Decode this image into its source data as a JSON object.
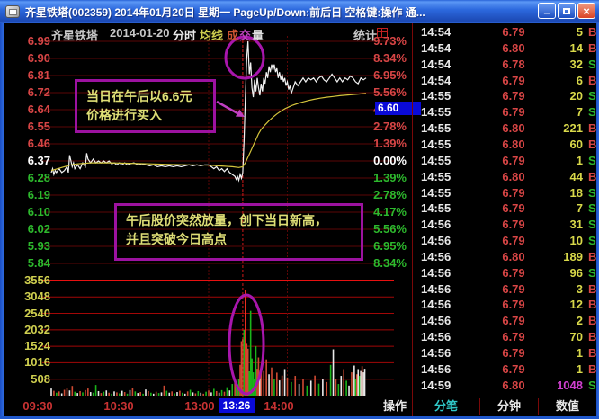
{
  "window": {
    "title": "齐星铁塔(002359)  2014年01月20日  星期一  PageUp/Down:前后日  空格键:操作  通...",
    "minimize": "_",
    "close": "×"
  },
  "header": {
    "stock_name": "齐星铁塔",
    "date": "2014-01-20",
    "period": "分时",
    "legend_ma": "均线",
    "legend_vol_1": "成",
    "legend_vol_2": "交",
    "legend_vol_3": "量",
    "stats": "统计"
  },
  "axes": {
    "price": [
      "6.99",
      "6.90",
      "6.81",
      "6.72",
      "6.64",
      "6.55",
      "6.46",
      "6.37",
      "6.28",
      "6.19",
      "6.10",
      "6.02",
      "5.93",
      "5.84"
    ],
    "percent": [
      "9.73%",
      "8.34%",
      "6.95%",
      "5.56%",
      "4.17%",
      "2.78%",
      "1.39%",
      "0.00%",
      "1.39%",
      "2.78%",
      "4.17%",
      "5.56%",
      "6.95%",
      "8.34%"
    ],
    "volume": [
      "3556",
      "3048",
      "2540",
      "2032",
      "1524",
      "1016",
      "508"
    ],
    "time": [
      "09:30",
      "10:30",
      "13:00",
      "14:00"
    ]
  },
  "cursor": {
    "time": "13:26",
    "price": "6.60"
  },
  "annotations": {
    "box1": [
      "当日在午后以6.6元",
      "价格进行买入"
    ],
    "box2": [
      "午后股价突然放量，创下当日新高，",
      "并且突破今日高点"
    ]
  },
  "tabs": {
    "items": [
      {
        "label": "操作",
        "active": false
      },
      {
        "label": "分笔",
        "active": true
      },
      {
        "label": "分钟",
        "active": false
      },
      {
        "label": "数值",
        "active": false
      }
    ]
  },
  "tick_list": [
    {
      "time": "14:54",
      "price": "6.79",
      "vol": "5",
      "side": "B",
      "hl": false
    },
    {
      "time": "14:54",
      "price": "6.80",
      "vol": "14",
      "side": "B",
      "hl": false
    },
    {
      "time": "14:54",
      "price": "6.78",
      "vol": "32",
      "side": "S",
      "hl": false
    },
    {
      "time": "14:54",
      "price": "6.79",
      "vol": "6",
      "side": "B",
      "hl": false
    },
    {
      "time": "14:55",
      "price": "6.79",
      "vol": "20",
      "side": "S",
      "hl": false
    },
    {
      "time": "14:55",
      "price": "6.79",
      "vol": "7",
      "side": "S",
      "hl": false
    },
    {
      "time": "14:55",
      "price": "6.80",
      "vol": "221",
      "side": "B",
      "hl": false
    },
    {
      "time": "14:55",
      "price": "6.80",
      "vol": "60",
      "side": "B",
      "hl": false
    },
    {
      "time": "14:55",
      "price": "6.79",
      "vol": "1",
      "side": "S",
      "hl": false
    },
    {
      "time": "14:55",
      "price": "6.80",
      "vol": "44",
      "side": "B",
      "hl": false
    },
    {
      "time": "14:55",
      "price": "6.79",
      "vol": "18",
      "side": "S",
      "hl": false
    },
    {
      "time": "14:55",
      "price": "6.79",
      "vol": "7",
      "side": "S",
      "hl": false
    },
    {
      "time": "14:56",
      "price": "6.79",
      "vol": "31",
      "side": "S",
      "hl": false
    },
    {
      "time": "14:56",
      "price": "6.79",
      "vol": "10",
      "side": "S",
      "hl": false
    },
    {
      "time": "14:56",
      "price": "6.80",
      "vol": "189",
      "side": "B",
      "hl": false
    },
    {
      "time": "14:56",
      "price": "6.79",
      "vol": "96",
      "side": "S",
      "hl": false
    },
    {
      "time": "14:56",
      "price": "6.79",
      "vol": "3",
      "side": "B",
      "hl": false
    },
    {
      "time": "14:56",
      "price": "6.79",
      "vol": "12",
      "side": "B",
      "hl": false
    },
    {
      "time": "14:56",
      "price": "6.79",
      "vol": "2",
      "side": "B",
      "hl": false
    },
    {
      "time": "14:56",
      "price": "6.79",
      "vol": "70",
      "side": "B",
      "hl": false
    },
    {
      "time": "14:56",
      "price": "6.79",
      "vol": "1",
      "side": "B",
      "hl": false
    },
    {
      "time": "14:56",
      "price": "6.79",
      "vol": "1",
      "side": "B",
      "hl": false
    },
    {
      "time": "14:59",
      "price": "6.80",
      "vol": "1048",
      "side": "S",
      "hl": true
    }
  ],
  "colors": {
    "up": "#d64545",
    "down": "#2db82d",
    "flat": "#ffffff",
    "vol_text": "#d8d84a",
    "highlight_vol": "#d040d0",
    "annotation_purple": "#9c12a0",
    "badge_blue": "#0a0ad8",
    "tab_active": "#30c8c8",
    "price_line": "#f2f2f2",
    "avg_line": "#d4c43c"
  },
  "chart_data": {
    "type": "line",
    "subtype": "intraday-price-volume",
    "prev_close": 6.37,
    "high": 6.99,
    "low": 6.27,
    "close": 6.8,
    "price_axis_range": [
      5.84,
      6.99
    ],
    "percent_axis_range": [
      -8.34,
      9.73
    ],
    "volume_axis_max": 3556,
    "x_range_minutes": [
      0,
      240
    ],
    "x_ticks": [
      "09:30",
      "10:30",
      "13:00",
      "14:00"
    ],
    "cursor": {
      "minute": 146,
      "time": "13:26",
      "price": 6.6
    },
    "price_series": [
      [
        0,
        6.31
      ],
      [
        1,
        6.33
      ],
      [
        2,
        6.3
      ],
      [
        3,
        6.32
      ],
      [
        4,
        6.31
      ],
      [
        6,
        6.33
      ],
      [
        8,
        6.31
      ],
      [
        10,
        6.32
      ],
      [
        12,
        6.34
      ],
      [
        13,
        6.31
      ],
      [
        14,
        6.4
      ],
      [
        15,
        6.37
      ],
      [
        16,
        6.34
      ],
      [
        17,
        6.36
      ],
      [
        18,
        6.33
      ],
      [
        20,
        6.35
      ],
      [
        22,
        6.33
      ],
      [
        24,
        6.36
      ],
      [
        26,
        6.34
      ],
      [
        27,
        6.41
      ],
      [
        28,
        6.38
      ],
      [
        30,
        6.36
      ],
      [
        32,
        6.38
      ],
      [
        34,
        6.36
      ],
      [
        36,
        6.37
      ],
      [
        38,
        6.36
      ],
      [
        40,
        6.37
      ],
      [
        42,
        6.36
      ],
      [
        44,
        6.37
      ],
      [
        46,
        6.355
      ],
      [
        48,
        6.36
      ],
      [
        50,
        6.35
      ],
      [
        52,
        6.36
      ],
      [
        54,
        6.35
      ],
      [
        56,
        6.36
      ],
      [
        58,
        6.35
      ],
      [
        60,
        6.355
      ],
      [
        63,
        6.36
      ],
      [
        66,
        6.35
      ],
      [
        69,
        6.355
      ],
      [
        72,
        6.35
      ],
      [
        75,
        6.345
      ],
      [
        78,
        6.35
      ],
      [
        81,
        6.34
      ],
      [
        84,
        6.345
      ],
      [
        87,
        6.34
      ],
      [
        90,
        6.345
      ],
      [
        93,
        6.34
      ],
      [
        96,
        6.345
      ],
      [
        99,
        6.34
      ],
      [
        102,
        6.345
      ],
      [
        105,
        6.35
      ],
      [
        108,
        6.345
      ],
      [
        111,
        6.35
      ],
      [
        114,
        6.345
      ],
      [
        117,
        6.35
      ],
      [
        120,
        6.35
      ],
      [
        122,
        6.34
      ],
      [
        124,
        6.33
      ],
      [
        126,
        6.34
      ],
      [
        128,
        6.32
      ],
      [
        130,
        6.33
      ],
      [
        132,
        6.315
      ],
      [
        134,
        6.33
      ],
      [
        136,
        6.31
      ],
      [
        138,
        6.3
      ],
      [
        140,
        6.29
      ],
      [
        141,
        6.275
      ],
      [
        142,
        6.29
      ],
      [
        143,
        6.27
      ],
      [
        144,
        6.3
      ],
      [
        145,
        6.28
      ],
      [
        146,
        6.31
      ],
      [
        147,
        6.48
      ],
      [
        148,
        6.7
      ],
      [
        149,
        6.9
      ],
      [
        150,
        6.99
      ],
      [
        151,
        6.82
      ],
      [
        152,
        6.88
      ],
      [
        153,
        6.75
      ],
      [
        154,
        6.7
      ],
      [
        155,
        6.79
      ],
      [
        156,
        6.73
      ],
      [
        157,
        6.8
      ],
      [
        158,
        6.75
      ],
      [
        159,
        6.71
      ],
      [
        160,
        6.77
      ],
      [
        161,
        6.73
      ],
      [
        162,
        6.8
      ],
      [
        163,
        6.77
      ],
      [
        164,
        6.83
      ],
      [
        165,
        6.8
      ],
      [
        166,
        6.86
      ],
      [
        167,
        6.83
      ],
      [
        168,
        6.87
      ],
      [
        169,
        6.84
      ],
      [
        170,
        6.87
      ],
      [
        171,
        6.83
      ],
      [
        172,
        6.85
      ],
      [
        173,
        6.8
      ],
      [
        174,
        6.83
      ],
      [
        175,
        6.79
      ],
      [
        176,
        6.82
      ],
      [
        177,
        6.78
      ],
      [
        178,
        6.8
      ],
      [
        179,
        6.76
      ],
      [
        180,
        6.78
      ],
      [
        181,
        6.74
      ],
      [
        182,
        6.76
      ],
      [
        183,
        6.72
      ],
      [
        184,
        6.74
      ],
      [
        185,
        6.76
      ],
      [
        186,
        6.78
      ],
      [
        188,
        6.76
      ],
      [
        190,
        6.78
      ],
      [
        192,
        6.8
      ],
      [
        194,
        6.78
      ],
      [
        196,
        6.8
      ],
      [
        198,
        6.79
      ],
      [
        200,
        6.8
      ],
      [
        202,
        6.78
      ],
      [
        204,
        6.8
      ],
      [
        206,
        6.81
      ],
      [
        208,
        6.79
      ],
      [
        210,
        6.78
      ],
      [
        212,
        6.8
      ],
      [
        214,
        6.82
      ],
      [
        216,
        6.8
      ],
      [
        218,
        6.78
      ],
      [
        220,
        6.8
      ],
      [
        222,
        6.78
      ],
      [
        224,
        6.8
      ],
      [
        226,
        6.79
      ],
      [
        228,
        6.81
      ],
      [
        230,
        6.8
      ],
      [
        232,
        6.78
      ],
      [
        234,
        6.77
      ],
      [
        236,
        6.8
      ],
      [
        238,
        6.79
      ],
      [
        240,
        6.8
      ]
    ],
    "avg_series": [
      [
        0,
        6.32
      ],
      [
        5,
        6.33
      ],
      [
        10,
        6.34
      ],
      [
        15,
        6.35
      ],
      [
        20,
        6.355
      ],
      [
        30,
        6.36
      ],
      [
        45,
        6.36
      ],
      [
        60,
        6.358
      ],
      [
        75,
        6.355
      ],
      [
        90,
        6.352
      ],
      [
        105,
        6.35
      ],
      [
        120,
        6.348
      ],
      [
        130,
        6.344
      ],
      [
        138,
        6.34
      ],
      [
        143,
        6.336
      ],
      [
        146,
        6.34
      ],
      [
        148,
        6.36
      ],
      [
        150,
        6.39
      ],
      [
        152,
        6.42
      ],
      [
        154,
        6.45
      ],
      [
        156,
        6.48
      ],
      [
        158,
        6.51
      ],
      [
        160,
        6.533
      ],
      [
        163,
        6.557
      ],
      [
        166,
        6.578
      ],
      [
        169,
        6.597
      ],
      [
        172,
        6.613
      ],
      [
        175,
        6.627
      ],
      [
        178,
        6.64
      ],
      [
        181,
        6.65
      ],
      [
        184,
        6.659
      ],
      [
        188,
        6.668
      ],
      [
        192,
        6.676
      ],
      [
        196,
        6.683
      ],
      [
        200,
        6.689
      ],
      [
        205,
        6.695
      ],
      [
        210,
        6.7
      ],
      [
        215,
        6.704
      ],
      [
        220,
        6.708
      ],
      [
        226,
        6.712
      ],
      [
        232,
        6.715
      ],
      [
        240,
        6.72
      ]
    ],
    "volume_bars": [
      [
        0,
        220,
        "w"
      ],
      [
        2,
        150,
        "r"
      ],
      [
        4,
        90,
        "g"
      ],
      [
        6,
        130,
        "r"
      ],
      [
        8,
        70,
        "w"
      ],
      [
        10,
        180,
        "r"
      ],
      [
        12,
        240,
        "r"
      ],
      [
        14,
        160,
        "w"
      ],
      [
        16,
        300,
        "r"
      ],
      [
        18,
        120,
        "g"
      ],
      [
        20,
        80,
        "w"
      ],
      [
        22,
        140,
        "r"
      ],
      [
        24,
        100,
        "g"
      ],
      [
        26,
        170,
        "r"
      ],
      [
        28,
        220,
        "r"
      ],
      [
        30,
        110,
        "w"
      ],
      [
        32,
        90,
        "g"
      ],
      [
        34,
        330,
        "g"
      ],
      [
        36,
        140,
        "w"
      ],
      [
        38,
        80,
        "r"
      ],
      [
        40,
        120,
        "g"
      ],
      [
        42,
        160,
        "w"
      ],
      [
        44,
        90,
        "r"
      ],
      [
        46,
        60,
        "g"
      ],
      [
        48,
        130,
        "w"
      ],
      [
        50,
        100,
        "r"
      ],
      [
        52,
        70,
        "g"
      ],
      [
        54,
        150,
        "w"
      ],
      [
        56,
        110,
        "r"
      ],
      [
        58,
        60,
        "g"
      ],
      [
        60,
        170,
        "w"
      ],
      [
        62,
        250,
        "r"
      ],
      [
        64,
        130,
        "g"
      ],
      [
        66,
        80,
        "w"
      ],
      [
        68,
        110,
        "r"
      ],
      [
        70,
        60,
        "g"
      ],
      [
        72,
        190,
        "w"
      ],
      [
        74,
        140,
        "r"
      ],
      [
        76,
        90,
        "g"
      ],
      [
        78,
        60,
        "w"
      ],
      [
        80,
        120,
        "r"
      ],
      [
        82,
        80,
        "g"
      ],
      [
        84,
        100,
        "w"
      ],
      [
        86,
        310,
        "r"
      ],
      [
        88,
        150,
        "g"
      ],
      [
        90,
        90,
        "w"
      ],
      [
        92,
        130,
        "r"
      ],
      [
        94,
        70,
        "g"
      ],
      [
        96,
        110,
        "w"
      ],
      [
        98,
        150,
        "r"
      ],
      [
        100,
        90,
        "g"
      ],
      [
        102,
        60,
        "w"
      ],
      [
        104,
        130,
        "r"
      ],
      [
        106,
        180,
        "g"
      ],
      [
        108,
        100,
        "w"
      ],
      [
        110,
        70,
        "r"
      ],
      [
        112,
        140,
        "g"
      ],
      [
        114,
        90,
        "w"
      ],
      [
        116,
        60,
        "r"
      ],
      [
        118,
        120,
        "g"
      ],
      [
        120,
        160,
        "r"
      ],
      [
        122,
        100,
        "w"
      ],
      [
        124,
        210,
        "g"
      ],
      [
        126,
        140,
        "r"
      ],
      [
        128,
        90,
        "w"
      ],
      [
        130,
        170,
        "g"
      ],
      [
        132,
        120,
        "r"
      ],
      [
        134,
        260,
        "g"
      ],
      [
        136,
        160,
        "w"
      ],
      [
        138,
        360,
        "g"
      ],
      [
        140,
        430,
        "r"
      ],
      [
        141,
        280,
        "g"
      ],
      [
        142,
        320,
        "r"
      ],
      [
        143,
        500,
        "g"
      ],
      [
        144,
        950,
        "r"
      ],
      [
        145,
        1680,
        "r"
      ],
      [
        146,
        1750,
        "r"
      ],
      [
        147,
        2030,
        "g"
      ],
      [
        148,
        3250,
        "R"
      ],
      [
        149,
        1600,
        "r"
      ],
      [
        150,
        1450,
        "r"
      ],
      [
        151,
        750,
        "g"
      ],
      [
        152,
        2620,
        "g"
      ],
      [
        153,
        1150,
        "g"
      ],
      [
        154,
        720,
        "g"
      ],
      [
        155,
        520,
        "g"
      ],
      [
        156,
        1530,
        "g"
      ],
      [
        157,
        830,
        "r"
      ],
      [
        158,
        1180,
        "r"
      ],
      [
        159,
        640,
        "w"
      ],
      [
        160,
        920,
        "r"
      ],
      [
        162,
        760,
        "r"
      ],
      [
        164,
        1120,
        "r"
      ],
      [
        166,
        660,
        "w"
      ],
      [
        168,
        870,
        "r"
      ],
      [
        170,
        520,
        "g"
      ],
      [
        172,
        710,
        "r"
      ],
      [
        174,
        470,
        "w"
      ],
      [
        176,
        620,
        "r"
      ],
      [
        178,
        820,
        "w"
      ],
      [
        180,
        560,
        "r"
      ],
      [
        183,
        420,
        "g"
      ],
      [
        186,
        610,
        "r"
      ],
      [
        189,
        360,
        "w"
      ],
      [
        192,
        520,
        "r"
      ],
      [
        195,
        310,
        "g"
      ],
      [
        198,
        460,
        "w"
      ],
      [
        201,
        620,
        "r"
      ],
      [
        204,
        370,
        "g"
      ],
      [
        207,
        510,
        "w"
      ],
      [
        210,
        420,
        "r"
      ],
      [
        213,
        950,
        "g"
      ],
      [
        215,
        1430,
        "w"
      ],
      [
        217,
        520,
        "r"
      ],
      [
        219,
        360,
        "g"
      ],
      [
        221,
        610,
        "w"
      ],
      [
        223,
        820,
        "r"
      ],
      [
        225,
        460,
        "g"
      ],
      [
        227,
        310,
        "w"
      ],
      [
        229,
        720,
        "r"
      ],
      [
        231,
        930,
        "w"
      ],
      [
        232,
        520,
        "g"
      ],
      [
        233,
        660,
        "r"
      ],
      [
        234,
        820,
        "w"
      ],
      [
        235,
        610,
        "g"
      ],
      [
        236,
        760,
        "w"
      ],
      [
        237,
        910,
        "r"
      ],
      [
        238,
        720,
        "w"
      ],
      [
        239,
        830,
        "w"
      ]
    ]
  }
}
